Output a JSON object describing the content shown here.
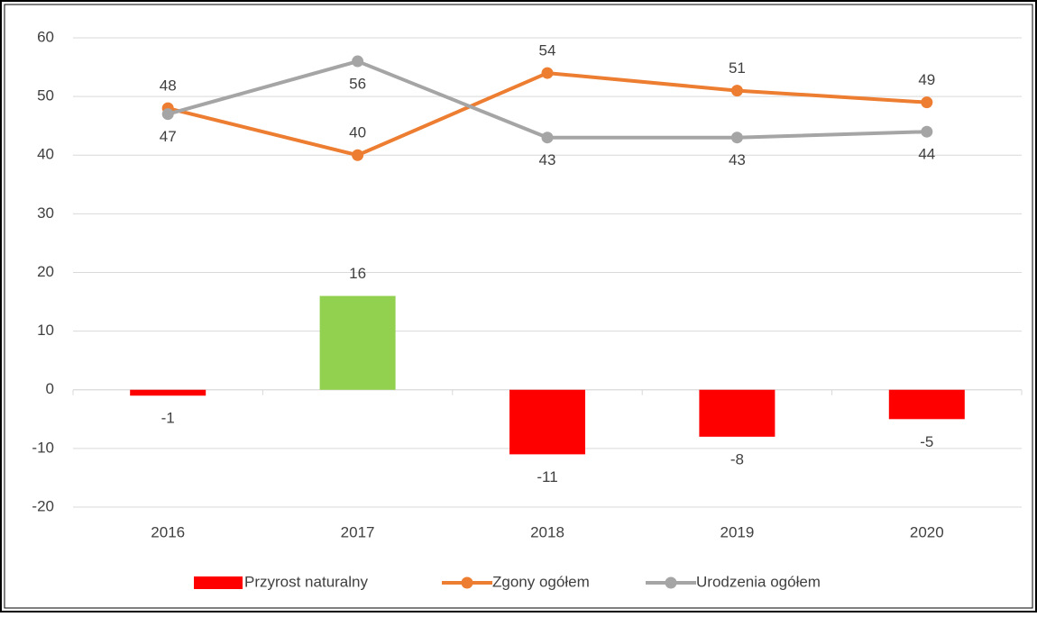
{
  "chart_data": {
    "type": "combo",
    "categories": [
      "2016",
      "2017",
      "2018",
      "2019",
      "2020"
    ],
    "series": [
      {
        "name": "Przyrost naturalny",
        "type": "bar",
        "color": "#ff0000",
        "colors": [
          "#ff0000",
          "#92d050",
          "#ff0000",
          "#ff0000",
          "#ff0000"
        ],
        "values": [
          -1,
          16,
          -11,
          -8,
          -5
        ]
      },
      {
        "name": "Zgony ogółem",
        "type": "line",
        "color": "#ed7d31",
        "values": [
          48,
          40,
          54,
          51,
          49
        ]
      },
      {
        "name": "Urodzenia ogółem",
        "type": "line",
        "color": "#a5a5a5",
        "values": [
          47,
          56,
          43,
          43,
          44
        ]
      }
    ],
    "ylim": [
      -20,
      60
    ],
    "yticks": [
      -20,
      -10,
      0,
      10,
      20,
      30,
      40,
      50,
      60
    ],
    "grid": true,
    "legend": "bottom"
  }
}
